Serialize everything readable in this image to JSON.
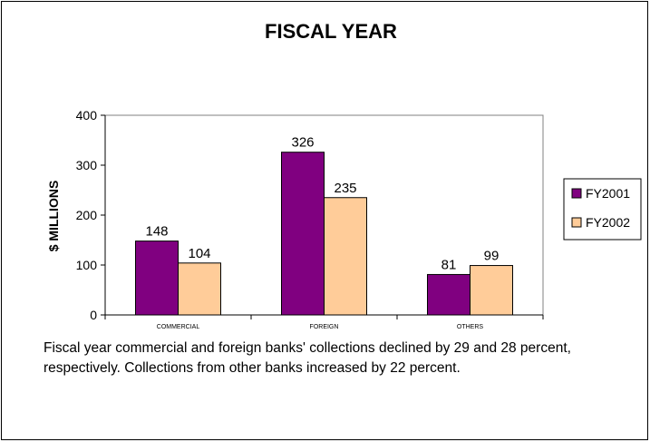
{
  "chart_data": {
    "type": "bar",
    "title": "FISCAL YEAR",
    "xlabel": "",
    "ylabel": "$ MILLIONS",
    "ylim": [
      0,
      400
    ],
    "yticks": [
      "0",
      "100",
      "200",
      "300",
      "400"
    ],
    "categories": [
      "COMMERCIAL",
      "FOREIGN",
      "OTHERS"
    ],
    "series": [
      {
        "name": "FY2001",
        "values": [
          148,
          326,
          81
        ],
        "color": "#800080"
      },
      {
        "name": "FY2002",
        "values": [
          104,
          235,
          99
        ],
        "color": "#FFCC99"
      }
    ],
    "grid": false,
    "legend": "right"
  },
  "caption": "Fiscal year commercial and foreign banks' collections declined by 29 and 28 percent, respectively.  Collections from other banks increased by 22 percent."
}
